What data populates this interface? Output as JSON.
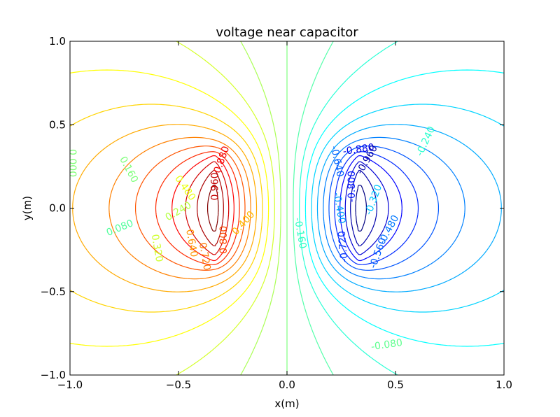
{
  "chart_data": {
    "type": "contour",
    "title": "voltage near capacitor",
    "xlabel": "x(m)",
    "ylabel": "y(m)",
    "xlim": [
      -1.0,
      1.0
    ],
    "ylim": [
      -1.0,
      1.0
    ],
    "xticks": [
      "−1.0",
      "−0.5",
      "0.0",
      "0.5",
      "1.0"
    ],
    "yticks": [
      "−1.0",
      "−0.5",
      "0.0",
      "0.5",
      "1.0"
    ],
    "xtick_values": [
      -1.0,
      -0.5,
      0.0,
      0.5,
      1.0
    ],
    "ytick_values": [
      -1.0,
      -0.5,
      0.0,
      0.5,
      1.0
    ],
    "grid": false,
    "colormap": "jet",
    "plates": [
      {
        "x": -0.333,
        "y_min": -0.333,
        "y_max": 0.333,
        "voltage": 1.0
      },
      {
        "x": 0.333,
        "y_min": -0.333,
        "y_max": 0.333,
        "voltage": -1.0
      }
    ],
    "levels": [
      -0.96,
      -0.88,
      -0.8,
      -0.72,
      -0.64,
      -0.56,
      -0.48,
      -0.4,
      -0.32,
      -0.24,
      -0.16,
      -0.08,
      0.0,
      0.08,
      0.16,
      0.24,
      0.32,
      0.4,
      0.48,
      0.56,
      0.64,
      0.72,
      0.8,
      0.88,
      0.96
    ],
    "contour_labels": [
      {
        "text": "0.000",
        "x": -0.99,
        "y": 0.27,
        "angle": 90,
        "color": "#80ff77"
      },
      {
        "text": "0.160",
        "x": -0.73,
        "y": 0.23,
        "angle": 62,
        "color": "#7dff7a"
      },
      {
        "text": "0.080",
        "x": -0.77,
        "y": -0.12,
        "angle": -22,
        "color": "#52ff9c"
      },
      {
        "text": "0.480",
        "x": -0.47,
        "y": 0.12,
        "angle": 55,
        "color": "#e8ff0f"
      },
      {
        "text": "0.240",
        "x": -0.5,
        "y": -0.02,
        "angle": -30,
        "color": "#b5ff42"
      },
      {
        "text": "0.320",
        "x": -0.6,
        "y": -0.24,
        "angle": 80,
        "color": "#ceff29"
      },
      {
        "text": "0.640",
        "x": -0.44,
        "y": -0.21,
        "angle": 80,
        "color": "#ff9400"
      },
      {
        "text": "0.720",
        "x": -0.38,
        "y": -0.29,
        "angle": 80,
        "color": "#ff7700"
      },
      {
        "text": "0.800",
        "x": -0.29,
        "y": -0.19,
        "angle": -90,
        "color": "#ff4800"
      },
      {
        "text": "0.400",
        "x": -0.2,
        "y": -0.09,
        "angle": -48,
        "color": "#ffb800"
      },
      {
        "text": "0.960",
        "x": -0.33,
        "y": 0.13,
        "angle": -90,
        "color": "#c40000"
      },
      {
        "text": "0.880",
        "x": -0.3,
        "y": 0.29,
        "angle": -70,
        "color": "#f50000"
      },
      {
        "text": "-0.240",
        "x": 0.64,
        "y": 0.4,
        "angle": -65,
        "color": "#29ffce"
      },
      {
        "text": "-0.160",
        "x": 0.06,
        "y": -0.15,
        "angle": 80,
        "color": "#33ffc4"
      },
      {
        "text": "-0.080",
        "x": 0.46,
        "y": -0.82,
        "angle": -8,
        "color": "#5fff8f"
      },
      {
        "text": "-0.640",
        "x": 0.23,
        "y": 0.28,
        "angle": 78,
        "color": "#0064ff"
      },
      {
        "text": "-0.880",
        "x": 0.33,
        "y": 0.35,
        "angle": -8,
        "color": "#0000e8"
      },
      {
        "text": "-0.960",
        "x": 0.37,
        "y": 0.29,
        "angle": -60,
        "color": "#0000a8"
      },
      {
        "text": "-0.800",
        "x": 0.3,
        "y": 0.13,
        "angle": -90,
        "color": "#0014ff"
      },
      {
        "text": "-0.400",
        "x": 0.24,
        "y": 0.0,
        "angle": 80,
        "color": "#00a4ff"
      },
      {
        "text": "-0.320",
        "x": 0.4,
        "y": 0.05,
        "angle": -70,
        "color": "#00c8ff"
      },
      {
        "text": "-0.480",
        "x": 0.47,
        "y": -0.13,
        "angle": -62,
        "color": "#0078ff"
      },
      {
        "text": "-0.560",
        "x": 0.42,
        "y": -0.27,
        "angle": -70,
        "color": "#0060ff"
      },
      {
        "text": "-0.720",
        "x": 0.26,
        "y": -0.23,
        "angle": -95,
        "color": "#0030ff"
      }
    ]
  }
}
